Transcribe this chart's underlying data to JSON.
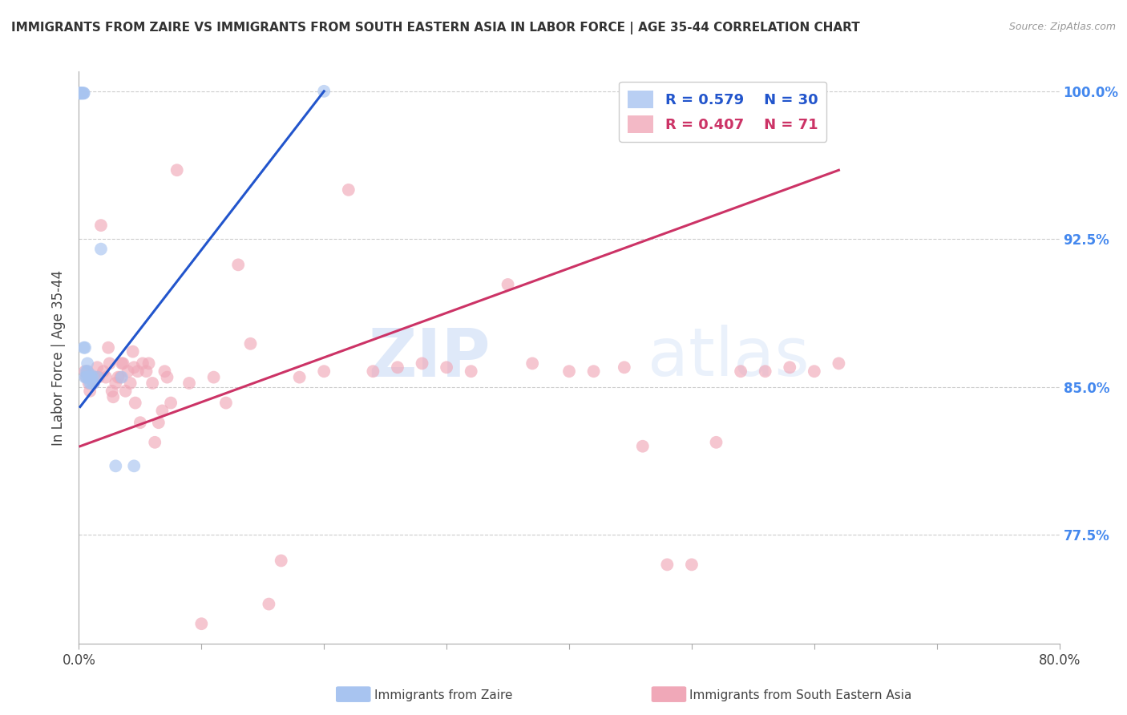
{
  "title": "IMMIGRANTS FROM ZAIRE VS IMMIGRANTS FROM SOUTH EASTERN ASIA IN LABOR FORCE | AGE 35-44 CORRELATION CHART",
  "source": "Source: ZipAtlas.com",
  "ylabel": "In Labor Force | Age 35-44",
  "legend_label_1": "Immigrants from Zaire",
  "legend_label_2": "Immigrants from South Eastern Asia",
  "R1": 0.579,
  "N1": 30,
  "R2": 0.407,
  "N2": 71,
  "color1": "#a8c4f0",
  "color2": "#f0a8b8",
  "line_color1": "#2255cc",
  "line_color2": "#cc3366",
  "xlim": [
    0.0,
    0.8
  ],
  "ylim": [
    0.72,
    1.01
  ],
  "yticks": [
    0.775,
    0.85,
    0.925,
    1.0
  ],
  "ytick_labels": [
    "77.5%",
    "85.0%",
    "92.5%",
    "100.0%"
  ],
  "xticks": [
    0.0,
    0.1,
    0.2,
    0.3,
    0.4,
    0.5,
    0.6,
    0.7,
    0.8
  ],
  "xtick_labels": [
    "0.0%",
    "",
    "",
    "",
    "",
    "",
    "",
    "",
    "80.0%"
  ],
  "watermark_zip": "ZIP",
  "watermark_atlas": "atlas",
  "background_color": "#ffffff",
  "grid_color": "#cccccc",
  "zaire_x": [
    0.001,
    0.001,
    0.001,
    0.002,
    0.002,
    0.003,
    0.003,
    0.004,
    0.004,
    0.004,
    0.005,
    0.005,
    0.006,
    0.006,
    0.007,
    0.007,
    0.007,
    0.008,
    0.009,
    0.009,
    0.01,
    0.01,
    0.011,
    0.012,
    0.015,
    0.018,
    0.03,
    0.035,
    0.045,
    0.2
  ],
  "zaire_y": [
    0.999,
    0.999,
    0.999,
    0.999,
    0.999,
    0.999,
    0.999,
    0.999,
    0.999,
    0.87,
    0.87,
    0.855,
    0.858,
    0.855,
    0.862,
    0.858,
    0.855,
    0.855,
    0.855,
    0.852,
    0.856,
    0.852,
    0.855,
    0.852,
    0.855,
    0.92,
    0.81,
    0.855,
    0.81,
    1.0
  ],
  "sea_x": [
    0.005,
    0.006,
    0.007,
    0.008,
    0.009,
    0.01,
    0.012,
    0.013,
    0.015,
    0.016,
    0.018,
    0.02,
    0.022,
    0.024,
    0.025,
    0.027,
    0.028,
    0.03,
    0.032,
    0.034,
    0.035,
    0.036,
    0.038,
    0.04,
    0.042,
    0.044,
    0.045,
    0.046,
    0.048,
    0.05,
    0.052,
    0.055,
    0.057,
    0.06,
    0.062,
    0.065,
    0.068,
    0.07,
    0.072,
    0.075,
    0.08,
    0.09,
    0.1,
    0.11,
    0.12,
    0.13,
    0.14,
    0.155,
    0.165,
    0.18,
    0.2,
    0.22,
    0.24,
    0.26,
    0.28,
    0.3,
    0.32,
    0.35,
    0.37,
    0.4,
    0.42,
    0.445,
    0.46,
    0.48,
    0.5,
    0.52,
    0.54,
    0.56,
    0.58,
    0.6,
    0.62
  ],
  "sea_y": [
    0.858,
    0.855,
    0.858,
    0.852,
    0.848,
    0.855,
    0.852,
    0.855,
    0.86,
    0.855,
    0.932,
    0.858,
    0.855,
    0.87,
    0.862,
    0.848,
    0.845,
    0.852,
    0.855,
    0.855,
    0.862,
    0.862,
    0.848,
    0.858,
    0.852,
    0.868,
    0.86,
    0.842,
    0.858,
    0.832,
    0.862,
    0.858,
    0.862,
    0.852,
    0.822,
    0.832,
    0.838,
    0.858,
    0.855,
    0.842,
    0.96,
    0.852,
    0.73,
    0.855,
    0.842,
    0.912,
    0.872,
    0.74,
    0.762,
    0.855,
    0.858,
    0.95,
    0.858,
    0.86,
    0.862,
    0.86,
    0.858,
    0.902,
    0.862,
    0.858,
    0.858,
    0.86,
    0.82,
    0.76,
    0.76,
    0.822,
    0.858,
    0.858,
    0.86,
    0.858,
    0.862
  ],
  "blue_line_x": [
    0.001,
    0.2
  ],
  "blue_line_y": [
    0.84,
    1.0
  ],
  "pink_line_x": [
    0.001,
    0.62
  ],
  "pink_line_y": [
    0.82,
    0.96
  ]
}
